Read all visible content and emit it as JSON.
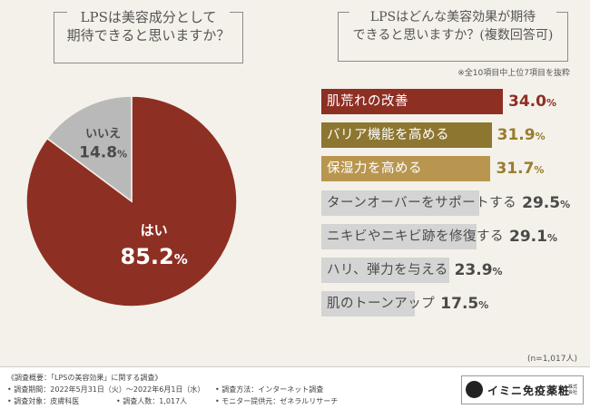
{
  "question_left": "LPSは美容成分として\n期待できると思いますか？",
  "question_right": "LPSはどんな美容効果が期待\nできると思いますか？(複数回答可)",
  "note_top": "※全10項目中上位7項目を抜粋",
  "note_n": "(n=1,017人)",
  "colors": {
    "background": "#f4f1ea",
    "pie_yes": "#8e2f24",
    "pie_no": "#b9b9b9",
    "bar_rank1": "#8e2f24",
    "bar_rank2": "#8d7630",
    "bar_rank3": "#b9964f",
    "bar_other": "#d4d4d4"
  },
  "chart_data": [
    {
      "type": "pie",
      "slices": [
        {
          "label": "はい",
          "value": 85.2,
          "value_label": "85.2",
          "unit": "%"
        },
        {
          "label": "いいえ",
          "value": 14.8,
          "value_label": "14.8",
          "unit": "%"
        }
      ]
    },
    {
      "type": "bar",
      "orientation": "horizontal",
      "xlim": [
        0,
        34.0
      ],
      "categories": [
        "肌荒れの改善",
        "バリア機能を高める",
        "保湿力を高める",
        "ターンオーバーをサポートする",
        "ニキビやニキビ跡を修復する",
        "ハリ、弾力を与える",
        "肌のトーンアップ"
      ],
      "values": [
        34.0,
        31.9,
        31.7,
        29.5,
        29.1,
        23.9,
        17.5
      ],
      "value_labels": [
        "34.0",
        "31.9",
        "31.7",
        "29.5",
        "29.1",
        "23.9",
        "17.5"
      ],
      "unit": "%"
    }
  ],
  "footer": {
    "title": "《調査概要：「LPSの美容効果」に関する調査》",
    "period": "• 調査期間：2022年5月31日（火）〜2022年6月1日（水）",
    "method": "• 調査方法：インターネット調査",
    "target": "• 調査対象：皮膚科医",
    "count": "• 調査人数：1,017人",
    "provider": "• モニター提供元：ゼネラルリサーチ"
  },
  "logo": {
    "name": "イミニ免疫薬粧",
    "sub": "株式会社"
  }
}
